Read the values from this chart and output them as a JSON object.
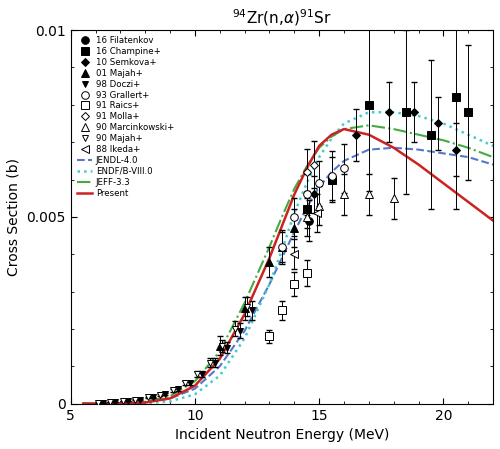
{
  "title": "$^{94}$Zr(n,$\\alpha$)$^{91}$Sr",
  "xlabel": "Incident Neutron Energy (MeV)",
  "ylabel": "Cross Section (b)",
  "xlim": [
    5,
    22
  ],
  "ylim": [
    0,
    0.01
  ],
  "yticks": [
    0,
    0.005,
    0.01
  ],
  "xticks": [
    5,
    10,
    15,
    20
  ],
  "Filatenkov": {
    "x": [
      14.6
    ],
    "y": [
      0.0049
    ],
    "yerr": [
      0.00055
    ],
    "marker": "o",
    "filled": true,
    "label": "16 Filatenkov"
  },
  "Champine": {
    "x": [
      14.5,
      15.5,
      17.0,
      18.5,
      19.5,
      20.5,
      21.0
    ],
    "y": [
      0.0052,
      0.006,
      0.008,
      0.0078,
      0.0072,
      0.0082,
      0.0078
    ],
    "yerr": [
      0.0005,
      0.0006,
      0.0023,
      0.0022,
      0.002,
      0.003,
      0.0018
    ],
    "marker": "s",
    "filled": true,
    "label": "16 Champine+"
  },
  "Semkova": {
    "x": [
      14.8,
      16.5,
      17.8,
      18.8,
      19.8,
      20.5
    ],
    "y": [
      0.0056,
      0.0072,
      0.0078,
      0.0078,
      0.0075,
      0.0068
    ],
    "yerr": [
      0.0005,
      0.0007,
      0.0008,
      0.0008,
      0.0007,
      0.0007
    ],
    "marker": "D",
    "filled": true,
    "label": "10 Semkova+"
  },
  "Majah01": {
    "x": [
      11.0,
      12.0,
      13.0,
      13.5,
      14.0
    ],
    "y": [
      0.00155,
      0.00255,
      0.0038,
      0.0042,
      0.0047
    ],
    "yerr": [
      0.00025,
      0.0003,
      0.0004,
      0.00045,
      0.0005
    ],
    "marker": "^",
    "filled": true,
    "label": "01 Majah+"
  },
  "Doczi": {
    "x": [
      6.3,
      6.8,
      7.3,
      7.8,
      8.3,
      8.8,
      9.3,
      9.8,
      10.3,
      10.8,
      11.3,
      11.8,
      12.3
    ],
    "y": [
      2e-05,
      4e-05,
      7e-05,
      0.00011,
      0.00017,
      0.00025,
      0.00038,
      0.00055,
      0.0008,
      0.0011,
      0.0015,
      0.00195,
      0.0025
    ],
    "yerr": [
      3e-06,
      5e-06,
      8e-06,
      1.2e-05,
      1.8e-05,
      2.5e-05,
      3.8e-05,
      5.5e-05,
      8e-05,
      0.00011,
      0.00015,
      0.0002,
      0.00025
    ],
    "marker": "v",
    "filled": true,
    "label": "98 Doczi+"
  },
  "Grallert": {
    "x": [
      13.5,
      14.0,
      14.5,
      15.0,
      15.5,
      16.0
    ],
    "y": [
      0.0042,
      0.005,
      0.0056,
      0.0059,
      0.0061,
      0.0063
    ],
    "yerr": [
      0.0004,
      0.0005,
      0.00055,
      0.0006,
      0.00065,
      0.00065
    ],
    "marker": "o",
    "filled": false,
    "label": "93 Grallert+"
  },
  "Raics": {
    "x": [
      13.0,
      13.5,
      14.0,
      14.5
    ],
    "y": [
      0.0018,
      0.0025,
      0.0032,
      0.0035
    ],
    "yerr": [
      0.00018,
      0.00025,
      0.00032,
      0.00035
    ],
    "marker": "s",
    "filled": false,
    "label": "91 Raics+"
  },
  "Molla": {
    "x": [
      14.5,
      14.8
    ],
    "y": [
      0.0062,
      0.0064
    ],
    "yerr": [
      0.00062,
      0.00064
    ],
    "marker": "D",
    "filled": false,
    "label": "91 Molla+"
  },
  "Marcinkowski": {
    "x": [
      14.5,
      15.0,
      16.0,
      17.0,
      18.0
    ],
    "y": [
      0.005,
      0.0053,
      0.0056,
      0.0056,
      0.0055
    ],
    "yerr": [
      0.0005,
      0.00053,
      0.00056,
      0.00056,
      0.00055
    ],
    "marker": "^",
    "filled": false,
    "label": "90 Marcinkowski+"
  },
  "Majah90": {
    "x": [
      6.1,
      6.6,
      7.1,
      7.6,
      8.1,
      8.6,
      9.1,
      9.6,
      10.1,
      10.6,
      11.1,
      11.6,
      12.1
    ],
    "y": [
      2.5e-05,
      4.5e-05,
      7.5e-05,
      0.00011,
      0.000165,
      0.00023,
      0.00036,
      0.00054,
      0.0008,
      0.0011,
      0.00155,
      0.002,
      0.0026
    ],
    "yerr": [
      4e-06,
      6e-06,
      9e-06,
      1.3e-05,
      1.8e-05,
      2.5e-05,
      3.6e-05,
      5.4e-05,
      8e-05,
      0.00011,
      0.000155,
      0.0002,
      0.00026
    ],
    "marker": "v",
    "filled": false,
    "label": "90 Majah+"
  },
  "Ikeda": {
    "x": [
      14.0,
      14.9
    ],
    "y": [
      0.004,
      0.0051
    ],
    "yerr": [
      0.0004,
      0.00051
    ],
    "marker": "<",
    "filled": false,
    "label": "88 Ikeda+"
  },
  "JENDL": {
    "x": [
      5.5,
      6,
      7,
      8,
      9,
      10,
      11,
      12,
      13,
      13.5,
      14,
      14.5,
      15,
      15.5,
      16,
      17,
      18,
      19,
      20,
      21,
      22
    ],
    "y": [
      1e-06,
      3e-06,
      1e-05,
      4e-05,
      0.00014,
      0.0004,
      0.001,
      0.00195,
      0.0032,
      0.0039,
      0.0046,
      0.00525,
      0.0058,
      0.0062,
      0.0065,
      0.0068,
      0.00685,
      0.0068,
      0.0067,
      0.0066,
      0.0064
    ],
    "color": "#5577cc",
    "style": "--",
    "label": "JENDL-4.0",
    "lw": 1.5
  },
  "ENDF": {
    "x": [
      5.5,
      6,
      7,
      8,
      9,
      10,
      11,
      12,
      13,
      13.5,
      14,
      14.5,
      15,
      15.5,
      16,
      17,
      18,
      19,
      20,
      21,
      22
    ],
    "y": [
      1e-06,
      1e-06,
      2e-06,
      1e-05,
      6e-05,
      0.00025,
      0.00075,
      0.00175,
      0.0032,
      0.0041,
      0.0051,
      0.0059,
      0.0066,
      0.0071,
      0.0075,
      0.0078,
      0.0078,
      0.0077,
      0.0075,
      0.0072,
      0.0069
    ],
    "color": "#44cccc",
    "style": ":",
    "label": "ENDF/B-VIII.0",
    "lw": 1.8
  },
  "JEFF": {
    "x": [
      5.5,
      6,
      7,
      8,
      9,
      10,
      11,
      12,
      13,
      13.5,
      14,
      14.5,
      15,
      15.5,
      16,
      17,
      18,
      19,
      20,
      21,
      22
    ],
    "y": [
      1e-06,
      2e-06,
      1e-05,
      5e-05,
      0.0002,
      0.0006,
      0.0014,
      0.0027,
      0.0042,
      0.005,
      0.00575,
      0.00635,
      0.00685,
      0.00715,
      0.00735,
      0.00745,
      0.00735,
      0.0072,
      0.00705,
      0.00685,
      0.0066
    ],
    "color": "#44aa44",
    "style": "-.",
    "label": "JEFF-3.3",
    "lw": 1.5
  },
  "Present": {
    "x": [
      5.5,
      6,
      7,
      8,
      9,
      10,
      11,
      12,
      13,
      13.5,
      14,
      14.5,
      15,
      15.5,
      16,
      17,
      18,
      19,
      20,
      21,
      22
    ],
    "y": [
      1e-06,
      1e-06,
      5e-06,
      3e-05,
      0.00014,
      0.00048,
      0.0012,
      0.0024,
      0.0039,
      0.00475,
      0.0056,
      0.0063,
      0.0069,
      0.0072,
      0.00735,
      0.0072,
      0.00685,
      0.0064,
      0.0059,
      0.0054,
      0.0049
    ],
    "color": "#cc2222",
    "style": "-",
    "label": "Present",
    "lw": 1.8
  }
}
